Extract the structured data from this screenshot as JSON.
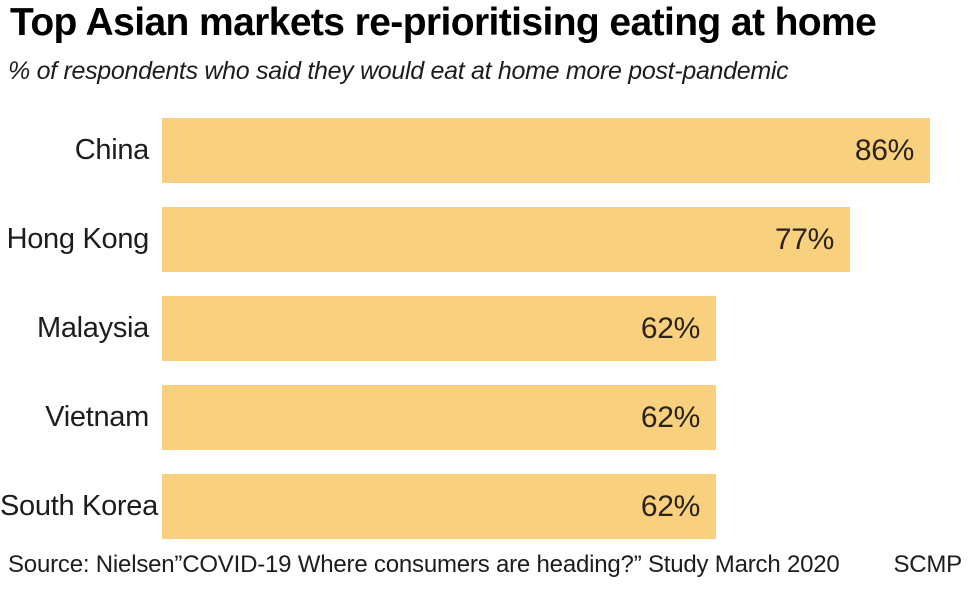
{
  "header": {
    "title": "Top Asian markets re-prioritising eating at home",
    "subtitle": "% of respondents who said they would eat at home more post-pandemic"
  },
  "chart_data": {
    "type": "bar",
    "orientation": "horizontal",
    "title": "Top Asian markets re-prioritising eating at home",
    "subtitle": "% of respondents who said they would eat at home more post-pandemic",
    "categories": [
      "China",
      "Hong Kong",
      "Malaysia",
      "Vietnam",
      "South Korea"
    ],
    "values": [
      86,
      77,
      62,
      62,
      62
    ],
    "display_values": [
      "86%",
      "77%",
      "62%",
      "62%",
      "62%"
    ],
    "xlim": [
      0,
      100
    ],
    "xlabel": "",
    "ylabel": "",
    "grid": false,
    "legend": false,
    "value_label_position": "inside-end",
    "bar_color": "#F9D07D",
    "label_color": "#1d1d1b",
    "value_text_color": "#2a241c"
  },
  "footer": {
    "source": "Source: Nielsen”COVID-19 Where consumers are heading?” Study March 2020",
    "brand": "SCMP"
  }
}
